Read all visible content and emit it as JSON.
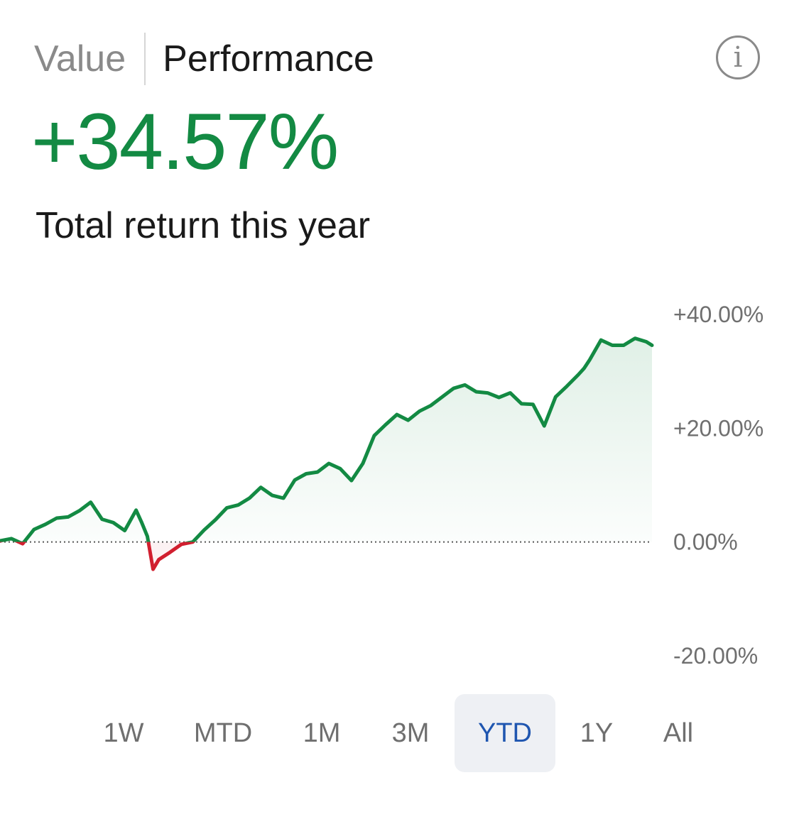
{
  "header": {
    "tabs": [
      {
        "label": "Value",
        "active": false
      },
      {
        "label": "Performance",
        "active": true
      }
    ],
    "info_icon": "info-icon",
    "info_glyph": "i"
  },
  "summary": {
    "value": "+34.57%",
    "caption": "Total return this year"
  },
  "colors": {
    "positive": "#138a43",
    "negative": "#d11f2f",
    "selected_range": "#1f56b0"
  },
  "chart_data": {
    "type": "area",
    "baseline": 0,
    "ylim": [
      -20,
      40
    ],
    "yticks": [
      40,
      20,
      0,
      -20
    ],
    "ytick_labels": [
      "+40.00%",
      "+20.00%",
      "0.00%",
      "-20.00%"
    ],
    "xlim": [
      0,
      230
    ],
    "x": [
      0,
      4,
      8,
      12,
      16,
      20,
      24,
      28,
      32,
      36,
      40,
      44,
      48,
      50,
      52,
      54,
      56,
      60,
      64,
      68,
      72,
      76,
      80,
      84,
      88,
      92,
      96,
      100,
      104,
      108,
      112,
      116,
      120,
      124,
      128,
      132,
      136,
      140,
      144,
      148,
      152,
      156,
      160,
      164,
      168,
      172,
      176,
      180,
      184,
      188,
      192,
      196,
      200,
      204,
      206,
      208,
      212,
      216,
      220,
      224,
      228,
      230
    ],
    "y": [
      0.2,
      0.6,
      -0.3,
      2.2,
      3.1,
      4.2,
      4.4,
      5.5,
      7.0,
      4.0,
      3.4,
      2.0,
      5.6,
      3.4,
      1.0,
      -4.8,
      -3.1,
      -1.8,
      -0.4,
      0.0,
      2.1,
      3.9,
      6.0,
      6.5,
      7.7,
      9.6,
      8.2,
      7.7,
      10.9,
      12.0,
      12.3,
      13.8,
      12.9,
      10.8,
      13.8,
      18.7,
      20.6,
      22.4,
      21.4,
      23.0,
      24.0,
      25.5,
      27.0,
      27.6,
      26.4,
      26.2,
      25.4,
      26.2,
      24.3,
      24.2,
      20.4,
      25.5,
      27.4,
      29.4,
      30.5,
      32.0,
      35.5,
      34.57,
      34.57,
      35.8,
      35.2,
      34.57
    ],
    "xlabel": "",
    "ylabel": "",
    "grid": false,
    "legend": "none"
  },
  "ranges": [
    {
      "label": "1W",
      "selected": false
    },
    {
      "label": "MTD",
      "selected": false
    },
    {
      "label": "1M",
      "selected": false
    },
    {
      "label": "3M",
      "selected": false
    },
    {
      "label": "YTD",
      "selected": true
    },
    {
      "label": "1Y",
      "selected": false
    },
    {
      "label": "All",
      "selected": false
    }
  ]
}
